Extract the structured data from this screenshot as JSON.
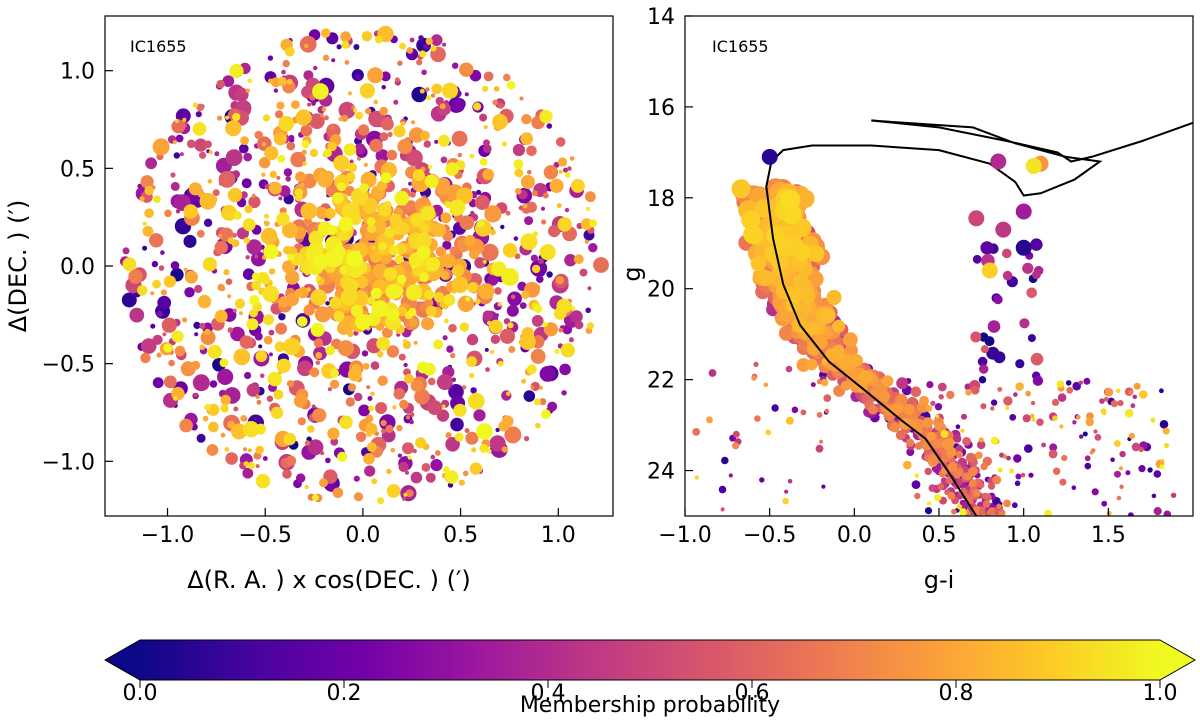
{
  "chart_data": [
    {
      "type": "scatter",
      "panel": "left",
      "label": "IC1655",
      "xlabel": "Δ(R. A. ) x cos(DEC. ) (′)",
      "ylabel": "Δ(DEC. ) (′)",
      "xlim": [
        -1.32,
        1.28
      ],
      "ylim": [
        -1.28,
        1.28
      ],
      "xticks": [
        -1.0,
        -0.5,
        0.0,
        0.5,
        1.0
      ],
      "xtick_labels": [
        "−1.0",
        "−0.5",
        "0.0",
        "0.5",
        "1.0"
      ],
      "yticks": [
        -1.0,
        -0.5,
        0.0,
        0.5,
        1.0
      ],
      "ytick_labels": [
        "−1.0",
        "−0.5",
        "0.0",
        "0.5",
        "1.0"
      ],
      "field_radius": 1.22,
      "core_center": [
        0.05,
        0.05
      ],
      "color_by": "Membership probability"
    },
    {
      "type": "scatter",
      "panel": "right",
      "label": "IC1655",
      "xlabel": "g-i",
      "ylabel": "g",
      "xlim": [
        -1.0,
        2.0
      ],
      "ylim": [
        25.0,
        14.0
      ],
      "xticks": [
        -1.0,
        -0.5,
        0.0,
        0.5,
        1.0,
        1.5
      ],
      "xtick_labels": [
        "−1.0",
        "−0.5",
        "0.0",
        "0.5",
        "1.0",
        "1.5"
      ],
      "yticks": [
        14,
        16,
        18,
        20,
        22,
        24
      ],
      "ytick_labels": [
        "14",
        "16",
        "18",
        "20",
        "22",
        "24"
      ],
      "color_by": "Membership probability",
      "isochrone": [
        [
          0.72,
          25.0
        ],
        [
          0.55,
          24.0
        ],
        [
          0.42,
          23.3
        ],
        [
          0.28,
          22.9
        ],
        [
          0.05,
          22.2
        ],
        [
          -0.15,
          21.6
        ],
        [
          -0.32,
          20.8
        ],
        [
          -0.42,
          19.9
        ],
        [
          -0.48,
          18.9
        ],
        [
          -0.52,
          17.75
        ],
        [
          -0.49,
          17.2
        ],
        [
          -0.42,
          16.95
        ],
        [
          -0.25,
          16.85
        ],
        [
          0.1,
          16.85
        ],
        [
          0.5,
          16.95
        ],
        [
          0.8,
          17.25
        ],
        [
          0.95,
          17.65
        ],
        [
          1.0,
          17.95
        ],
        [
          1.1,
          17.9
        ],
        [
          1.3,
          17.6
        ],
        [
          1.45,
          17.2
        ],
        [
          1.25,
          17.1
        ],
        [
          0.95,
          16.8
        ],
        [
          0.7,
          16.45
        ],
        [
          0.1,
          16.3
        ],
        [
          0.5,
          16.45
        ],
        [
          0.9,
          16.75
        ],
        [
          1.2,
          17.0
        ],
        [
          1.28,
          17.2
        ],
        [
          1.4,
          17.1
        ],
        [
          1.7,
          16.75
        ],
        [
          2.0,
          16.35
        ]
      ],
      "highlighted_stars": [
        {
          "x": -0.5,
          "y": 17.1,
          "p": 0.05
        },
        {
          "x": 1.1,
          "y": 17.25,
          "p": 0.75
        },
        {
          "x": 1.06,
          "y": 17.3,
          "p": 0.95
        },
        {
          "x": 0.85,
          "y": 17.2,
          "p": 0.4
        },
        {
          "x": 1.0,
          "y": 18.3,
          "p": 0.35
        },
        {
          "x": 1.0,
          "y": 19.1,
          "p": 0.05
        },
        {
          "x": 0.72,
          "y": 18.45,
          "p": 0.5
        },
        {
          "x": 0.88,
          "y": 18.7,
          "p": 0.45
        },
        {
          "x": 0.8,
          "y": 19.6,
          "p": 0.9
        }
      ]
    }
  ],
  "colorbar": {
    "label": "Membership probability",
    "min": 0.0,
    "max": 1.0,
    "ticks": [
      0.0,
      0.2,
      0.4,
      0.6,
      0.8,
      1.0
    ],
    "tick_labels": [
      "0.0",
      "0.2",
      "0.4",
      "0.6",
      "0.8",
      "1.0"
    ],
    "colormap": "plasma",
    "colormap_stops": [
      "#0d0887",
      "#47039f",
      "#7301a8",
      "#9c179e",
      "#bd3786",
      "#d8576b",
      "#ed7953",
      "#fb9f3a",
      "#fdca26",
      "#f0f921"
    ]
  }
}
